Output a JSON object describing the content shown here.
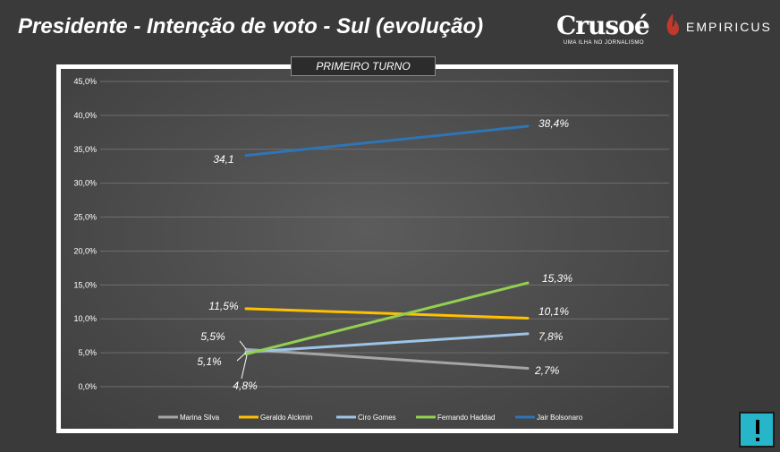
{
  "header": {
    "title": "Presidente -  Intenção de voto - Sul (evolução)",
    "logo_crusoe": "Crusoé",
    "logo_crusoe_sub": "UMA ILHA NO JORNALISMO",
    "logo_empiricus": "EMPIRICUS"
  },
  "chart_tab": "PRIMEIRO TURNO",
  "chart_data": {
    "type": "line",
    "title": "PRIMEIRO TURNO",
    "x": [
      1,
      2
    ],
    "ylim": [
      0,
      45
    ],
    "yticks": [
      "0,0%",
      "5,0%",
      "10,0%",
      "15,0%",
      "20,0%",
      "25,0%",
      "30,0%",
      "35,0%",
      "40,0%",
      "45,0%"
    ],
    "grid": true,
    "legend_position": "bottom",
    "series": [
      {
        "name": "Marina Silva",
        "values": [
          5.5,
          2.7
        ],
        "color": "#a5a5a5",
        "labels": [
          "5,5%",
          "2,7%"
        ]
      },
      {
        "name": "Geraldo Alckmin",
        "values": [
          11.5,
          10.1
        ],
        "color": "#ffc000",
        "labels": [
          "11,5%",
          "10,1%"
        ]
      },
      {
        "name": "Ciro Gomes",
        "values": [
          5.1,
          7.8
        ],
        "color": "#9dc3e6",
        "labels": [
          "5,1%",
          "7,8%"
        ]
      },
      {
        "name": "Fernando Haddad",
        "values": [
          4.8,
          15.3
        ],
        "color": "#92d050",
        "labels": [
          "4,8%",
          "15,3%"
        ]
      },
      {
        "name": "Jair Bolsonaro",
        "values": [
          34.1,
          38.4
        ],
        "color": "#2e75b6",
        "labels": [
          "34,1",
          "38,4%"
        ]
      }
    ]
  },
  "alert_icon": "exclamation-icon"
}
